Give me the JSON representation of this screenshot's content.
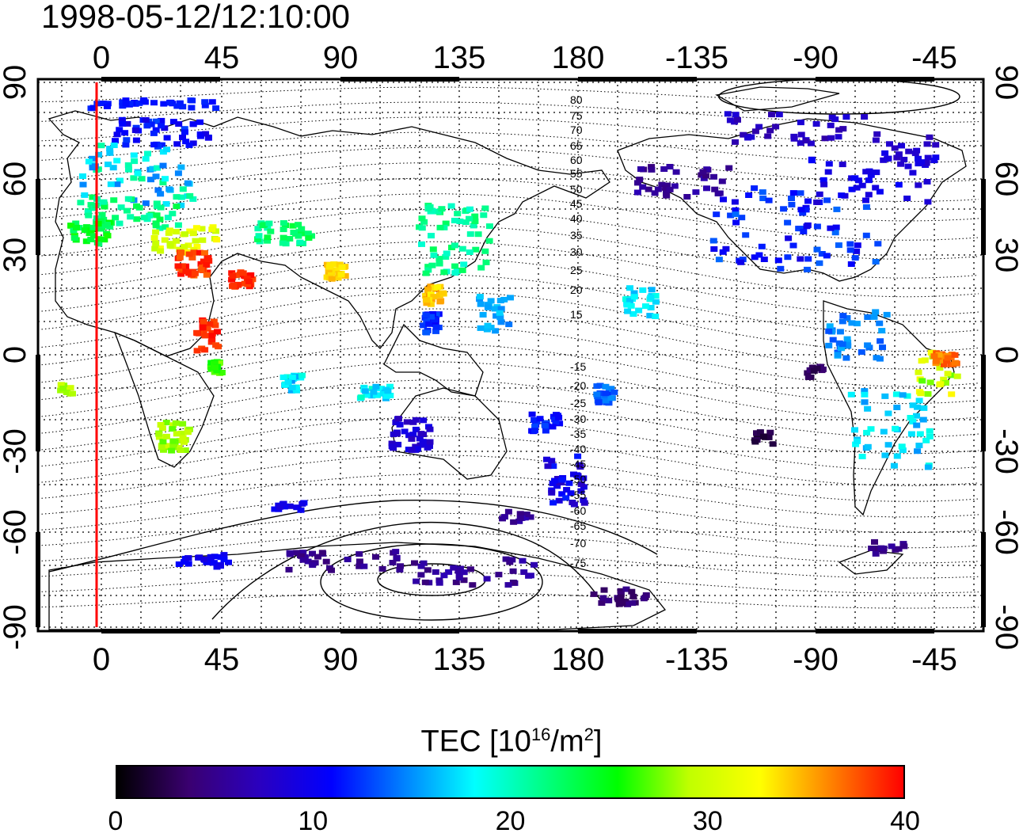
{
  "title": "1998-05-12/12:10:00",
  "map": {
    "top_lon_ticks": [
      "0",
      "45",
      "90",
      "135",
      "180",
      "-135",
      "-90",
      "-45"
    ],
    "bottom_lon_ticks": [
      "0",
      "45",
      "90",
      "135",
      "180",
      "-135",
      "-90",
      "-45"
    ],
    "left_lat_ticks": [
      "90",
      "60",
      "30",
      "0",
      "-30",
      "-60",
      "-90"
    ],
    "right_lat_ticks": [
      "90",
      "60",
      "30",
      "0",
      "-30",
      "-60",
      "-90"
    ],
    "contour_labels_north": [
      "80",
      "75",
      "70",
      "65",
      "60",
      "55",
      "50",
      "45",
      "40",
      "35",
      "30",
      "25",
      "20",
      "15"
    ],
    "contour_labels_south": [
      "-15",
      "-20",
      "-25",
      "-30",
      "-35",
      "-40",
      "-45",
      "-50",
      "-55",
      "-60",
      "-65",
      "-70",
      "-75"
    ],
    "terminator_line_color": "#ff0000",
    "grid": true
  },
  "colorbar": {
    "label_main": "TEC  [10",
    "label_exp": "16",
    "label_unit": "/m",
    "label_unit_exp": "2",
    "label_end": "]",
    "ticks": [
      "0",
      "10",
      "20",
      "30",
      "40"
    ],
    "range": [
      0,
      40
    ],
    "colors": [
      "#000000",
      "#3a0070",
      "#2a00c0",
      "#0000ff",
      "#0080ff",
      "#00ffff",
      "#00ff80",
      "#00ff00",
      "#c0ff00",
      "#ffff00",
      "#ff8000",
      "#ff0000"
    ]
  }
}
